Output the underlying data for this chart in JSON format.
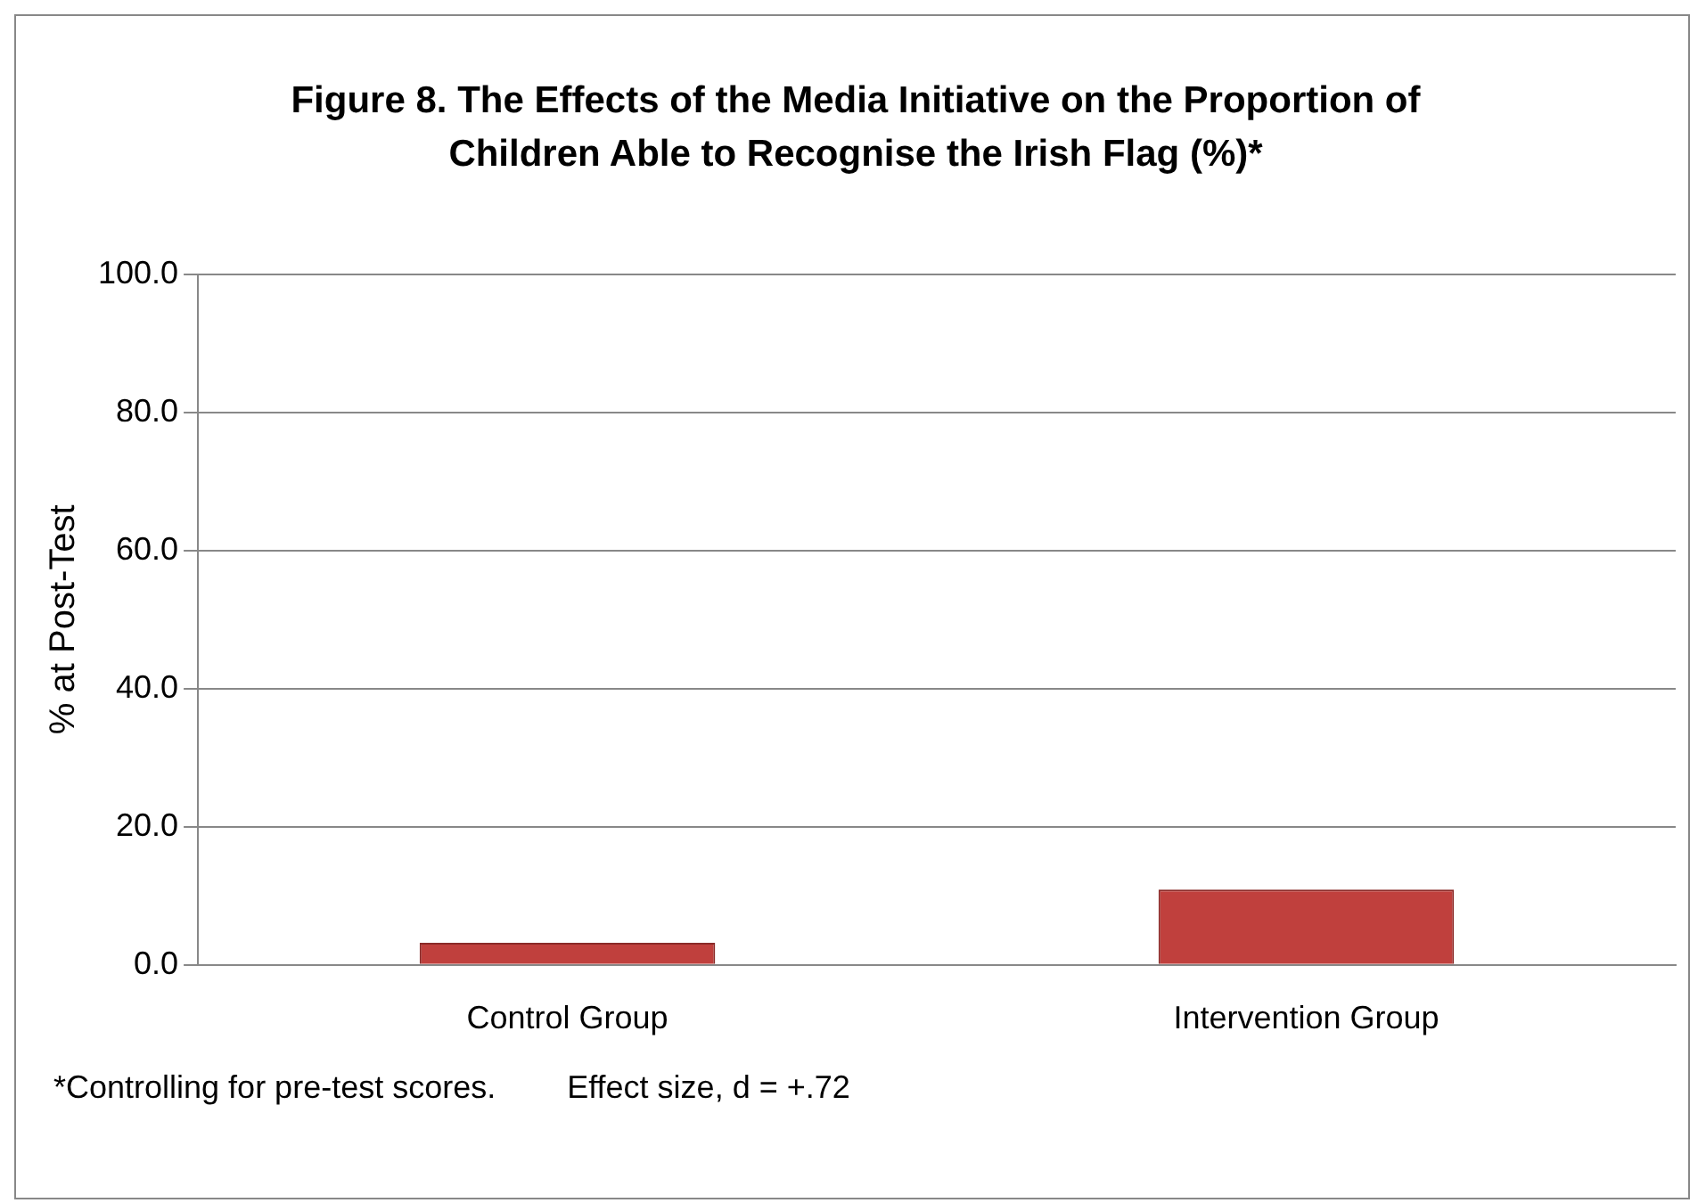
{
  "chart_data": {
    "type": "bar",
    "title": "Figure 8. The Effects of the Media Initiative on the Proportion of Children Able to Recognise the Irish Flag (%)*",
    "ylabel": "% at Post-Test",
    "categories": [
      "Control Group",
      "Intervention Group"
    ],
    "values": [
      3.2,
      10.9
    ],
    "color": "#c0403d",
    "ylim": [
      0,
      100
    ],
    "yticks": [
      {
        "value": 0,
        "label": "0.0"
      },
      {
        "value": 20,
        "label": "20.0"
      },
      {
        "value": 40,
        "label": "40.0"
      },
      {
        "value": 60,
        "label": "60.0"
      },
      {
        "value": 80,
        "label": "80.0"
      },
      {
        "value": 100,
        "label": "100.0"
      }
    ],
    "grid": "y",
    "annotations": [
      "*Controlling for pre-test scores.",
      "Effect size, d = +.72"
    ]
  }
}
